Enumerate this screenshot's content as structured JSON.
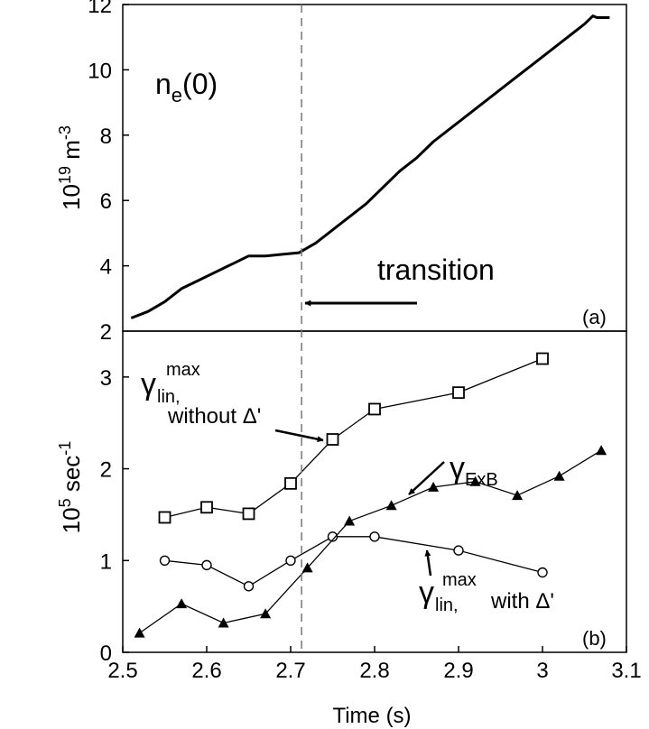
{
  "chart_data": [
    {
      "panel": "(a)",
      "type": "line",
      "ylabel_base": "10",
      "ylabel_exp": "19",
      "ylabel_unit": "m",
      "ylabel_unit_exp": "-3",
      "ylim": [
        2,
        12
      ],
      "yticks": [
        "2",
        "4",
        "6",
        "8",
        "10",
        "12"
      ],
      "xlim": [
        2.5,
        3.1
      ],
      "series_label": {
        "main": "n",
        "sub": "e",
        "tail": "(0)"
      },
      "annotation": "transition",
      "transition_time": 2.713,
      "series": [
        {
          "x": [
            2.51,
            2.53,
            2.55,
            2.57,
            2.59,
            2.61,
            2.63,
            2.65,
            2.67,
            2.69,
            2.71,
            2.73,
            2.75,
            2.77,
            2.79,
            2.81,
            2.83,
            2.85,
            2.87,
            2.89,
            2.91,
            2.93,
            2.95,
            2.97,
            2.99,
            3.01,
            3.03,
            3.05,
            3.06,
            3.065,
            3.08
          ],
          "y": [
            2.4,
            2.6,
            2.9,
            3.3,
            3.55,
            3.8,
            4.05,
            4.3,
            4.3,
            4.35,
            4.4,
            4.7,
            5.1,
            5.5,
            5.9,
            6.4,
            6.9,
            7.3,
            7.8,
            8.2,
            8.6,
            9.0,
            9.4,
            9.8,
            10.2,
            10.6,
            11.0,
            11.4,
            11.65,
            11.6,
            11.6
          ]
        }
      ]
    },
    {
      "panel": "(b)",
      "type": "line",
      "ylabel_base": "10",
      "ylabel_exp": "5",
      "ylabel_unit": "sec",
      "ylabel_unit_exp": "-1",
      "ylim": [
        0,
        3.5
      ],
      "yticks": [
        "0",
        "1",
        "2",
        "3"
      ],
      "xlabel": "Time (s)",
      "xlim": [
        2.5,
        3.1
      ],
      "xticks": [
        "2.5",
        "2.6",
        "2.7",
        "2.8",
        "2.9",
        "3",
        "3.1"
      ],
      "series": [
        {
          "name": "γ_lin,^max without Δ'",
          "marker": "square",
          "x": [
            2.55,
            2.6,
            2.65,
            2.7,
            2.75,
            2.8,
            2.9,
            3.0
          ],
          "y": [
            1.47,
            1.58,
            1.51,
            1.84,
            2.32,
            2.65,
            2.83,
            3.2
          ]
        },
        {
          "name": "γ_lin,^max with Δ'",
          "marker": "circle",
          "x": [
            2.55,
            2.6,
            2.65,
            2.7,
            2.75,
            2.8,
            2.9,
            3.0
          ],
          "y": [
            1.0,
            0.95,
            0.72,
            1.0,
            1.26,
            1.26,
            1.11,
            0.87
          ]
        },
        {
          "name": "γ_ExB",
          "marker": "triangle",
          "x": [
            2.52,
            2.57,
            2.62,
            2.67,
            2.72,
            2.77,
            2.82,
            2.87,
            2.92,
            2.97,
            3.02,
            3.07
          ],
          "y": [
            0.21,
            0.53,
            0.32,
            0.42,
            0.92,
            1.43,
            1.6,
            1.8,
            1.86,
            1.71,
            1.92,
            2.2
          ]
        }
      ],
      "labels": {
        "gamma": "γ",
        "without": {
          "sub": "lin,",
          "sup": "max",
          "text": "without Δ'"
        },
        "exb": {
          "sub": "ExB"
        },
        "with": {
          "sub": "lin,",
          "sup": "max",
          "text": "with Δ'"
        }
      }
    }
  ]
}
